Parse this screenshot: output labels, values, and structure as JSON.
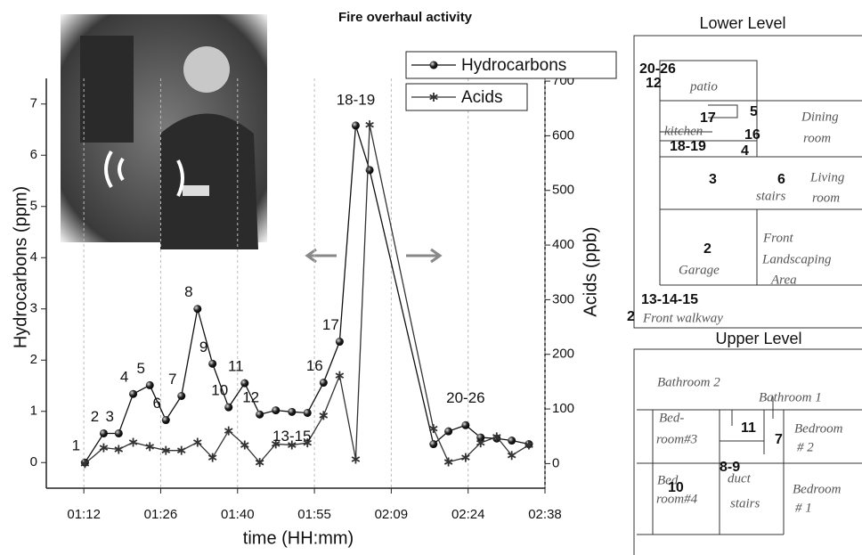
{
  "chart_data": {
    "type": "line",
    "title": "Fire overhaul activity",
    "x_label": "time (HH:mm)",
    "y_label": "Hydrocarbons (ppm)",
    "y2_label": "Acids (ppb)",
    "x": [
      72.2,
      75.7,
      78.5,
      81.2,
      84.3,
      87.3,
      90.2,
      93.2,
      96,
      99,
      102,
      104.8,
      107.8,
      110.8,
      113.7,
      116.7,
      119.7,
      122.7,
      125.3,
      137.2,
      140,
      143.2,
      146,
      149,
      151.8,
      155
    ],
    "series": [
      {
        "name": "Hydrocarbons",
        "color": "#111111",
        "values": [
          0,
          0.57,
          0.57,
          1.34,
          1.51,
          0.83,
          1.3,
          3.0,
          1.93,
          1.08,
          1.55,
          0.94,
          1.02,
          0.99,
          0.97,
          1.56,
          2.36,
          6.58,
          5.71,
          0.36,
          0.61,
          0.73,
          0.49,
          0.47,
          0.43,
          0.36
        ]
      },
      {
        "name": "Acids",
        "color": "#333333",
        "axis": "y2",
        "values": [
          0,
          29,
          26,
          39,
          31,
          24,
          24,
          39,
          11,
          60,
          34,
          2,
          36,
          34,
          38,
          88,
          161,
          8,
          620,
          64,
          3,
          11,
          38,
          49,
          15,
          34
        ]
      }
    ],
    "point_labels": [
      "1",
      "2",
      "3",
      "4",
      "5",
      "6",
      "7",
      "8",
      "9",
      "10",
      "11",
      "12",
      null,
      "13-15",
      null,
      "16",
      "17",
      "18-19",
      null,
      null,
      null,
      "20-26",
      null,
      null,
      null,
      null
    ],
    "xlim": [
      65,
      158
    ],
    "xticks": [
      {
        "value": 72,
        "label": "01:12"
      },
      {
        "value": 86.33,
        "label": "01:26"
      },
      {
        "value": 100.67,
        "label": "01:40"
      },
      {
        "value": 115,
        "label": "01:55"
      },
      {
        "value": 129.33,
        "label": "02:09"
      },
      {
        "value": 143.67,
        "label": "02:24"
      },
      {
        "value": 158,
        "label": "02:38"
      }
    ],
    "ylim": [
      -0.5,
      7.5
    ],
    "yticks": [
      0,
      1,
      2,
      3,
      4,
      5,
      6,
      7
    ],
    "y2lim": [
      -45,
      705
    ],
    "y2ticks": [
      0,
      100,
      200,
      300,
      400,
      500,
      600,
      700
    ],
    "grid": true,
    "legend": "upper right"
  },
  "floor_plan": {
    "lower_title": "Lower Level",
    "lower_labels": [
      "20-26",
      "12",
      "patio",
      "17",
      "5",
      "kitchen",
      "16",
      "18-19",
      "4",
      "Dining",
      "room",
      "3",
      "6",
      "stairs",
      "Living",
      "room",
      "2",
      "Garage",
      "Front",
      "Landscaping",
      "Area",
      "13-14-15",
      "2",
      "Front walkway"
    ],
    "upper_title": "Upper Level",
    "upper_labels": [
      "Bathroom 2",
      "Bathroom 1",
      "Bed-",
      "room#3",
      "11",
      "7",
      "Bedroom",
      "# 2",
      "8-9",
      "Bed",
      "10",
      "room#4",
      "duct",
      "stairs",
      "Bedroom",
      "# 1"
    ]
  }
}
